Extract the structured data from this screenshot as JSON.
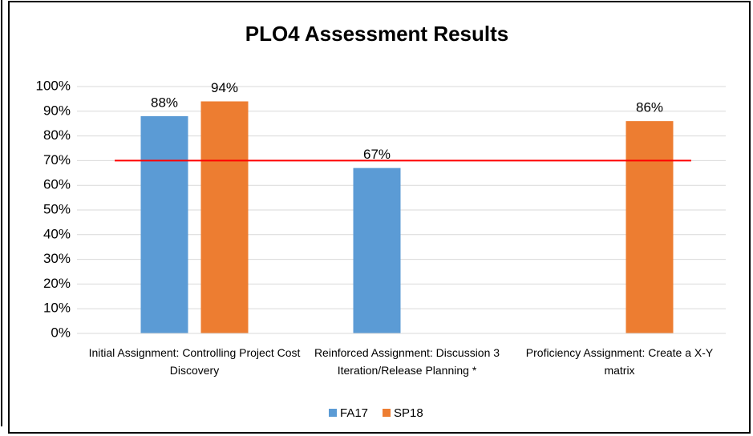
{
  "chart_data": {
    "type": "bar",
    "title": "PLO4 Assessment Results",
    "categories": [
      "Initial Assignment: Controlling Project Cost Discovery",
      "Reinforced Assignment: Discussion 3 Iteration/Release Planning *",
      "Proficiency Assignment: Create a X-Y matrix"
    ],
    "series": [
      {
        "name": "FA17",
        "color": "#5b9bd5",
        "values": [
          88,
          67,
          null
        ],
        "value_labels": [
          "88%",
          "67%",
          null
        ]
      },
      {
        "name": "SP18",
        "color": "#ed7d31",
        "values": [
          94,
          null,
          86
        ],
        "value_labels": [
          "94%",
          null,
          "86%"
        ]
      }
    ],
    "ylim": [
      0,
      100
    ],
    "yticks": [
      {
        "value": 0,
        "label": "0%"
      },
      {
        "value": 10,
        "label": "10%"
      },
      {
        "value": 20,
        "label": "20%"
      },
      {
        "value": 30,
        "label": "30%"
      },
      {
        "value": 40,
        "label": "40%"
      },
      {
        "value": 50,
        "label": "50%"
      },
      {
        "value": 60,
        "label": "60%"
      },
      {
        "value": 70,
        "label": "70%"
      },
      {
        "value": 80,
        "label": "80%"
      },
      {
        "value": 90,
        "label": "90%"
      },
      {
        "value": 100,
        "label": "100%"
      }
    ],
    "grid": true,
    "reference_line": {
      "value": 70,
      "color": "#ff0000"
    },
    "legend": "bottom"
  }
}
